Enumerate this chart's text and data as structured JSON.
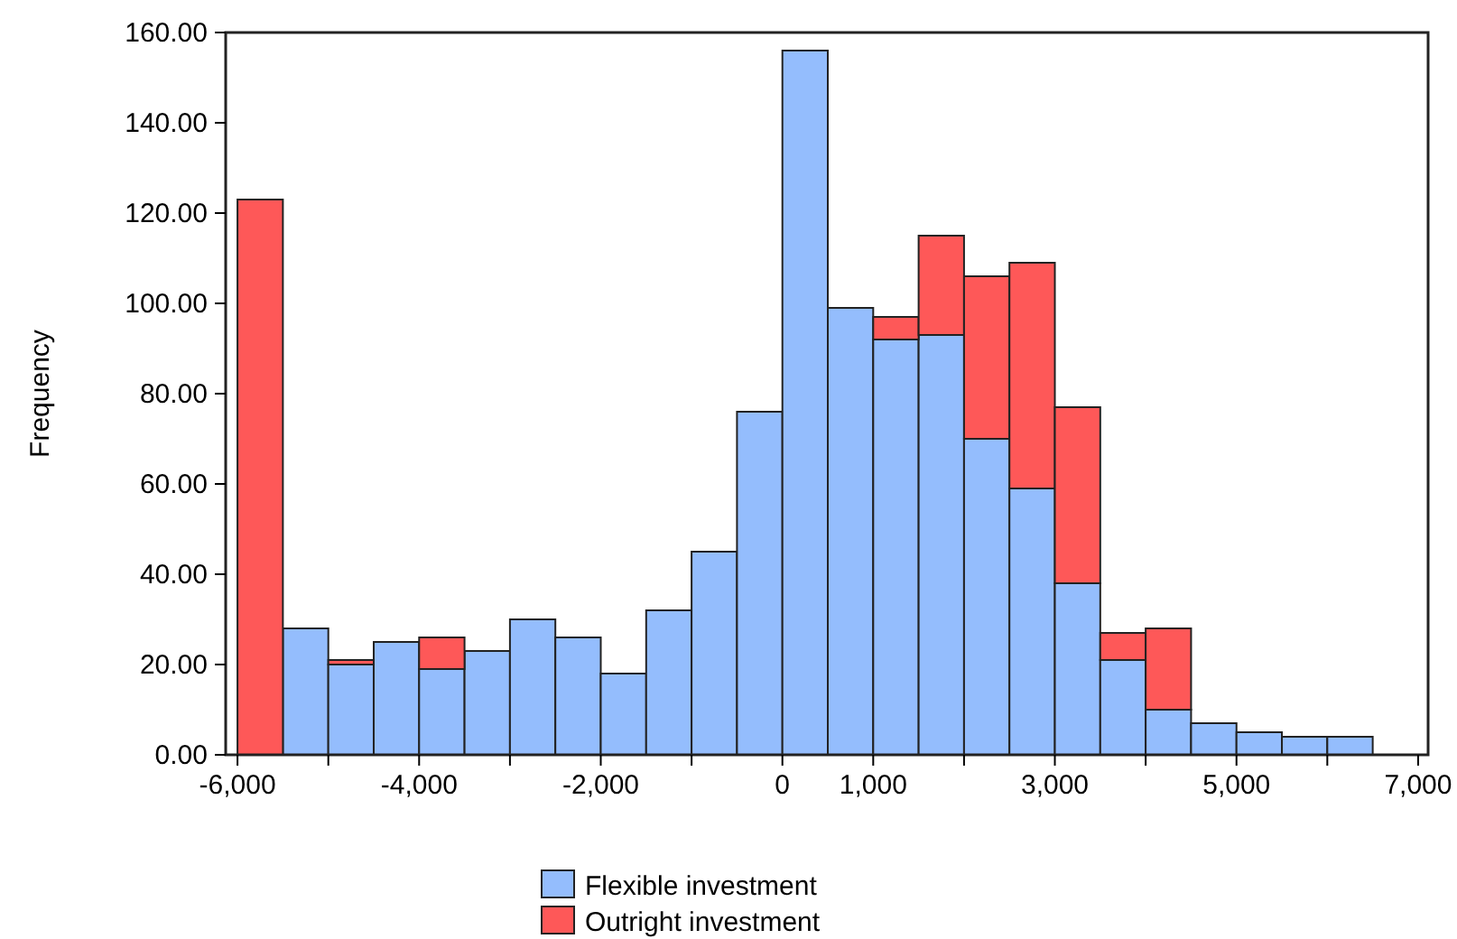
{
  "chart_data": {
    "type": "bar",
    "ylabel": "Frequency",
    "stacked": true,
    "legend": "bottom",
    "grid": false,
    "x": [
      -5750,
      -5250,
      -4750,
      -4250,
      -3750,
      -3250,
      -2750,
      -2250,
      -1750,
      -1250,
      -750,
      -250,
      250,
      750,
      1250,
      1750,
      2250,
      2750,
      3250,
      3750,
      4250,
      4750,
      5250,
      5750,
      6250
    ],
    "series": [
      {
        "name": "Flexible investment",
        "color": "#94bdfd",
        "values": [
          0,
          28,
          20,
          25,
          19,
          23,
          30,
          26,
          18,
          32,
          45,
          76,
          156,
          99,
          92,
          93,
          70,
          59,
          38,
          21,
          10,
          7,
          5,
          4,
          4
        ]
      },
      {
        "name": "Outright investment",
        "color": "#fe5858",
        "values": [
          123,
          0,
          1,
          0,
          7,
          0,
          0,
          0,
          0,
          0,
          0,
          0,
          0,
          0,
          5,
          22,
          36,
          50,
          39,
          6,
          18,
          0,
          0,
          0,
          0
        ]
      }
    ],
    "xlim": [
      -6130,
      7110
    ],
    "xticks": [
      {
        "value": -6000,
        "label": "-6,000"
      },
      {
        "value": -5000,
        "label": null
      },
      {
        "value": -4000,
        "label": "-4,000"
      },
      {
        "value": -3000,
        "label": null
      },
      {
        "value": -2000,
        "label": "-2,000"
      },
      {
        "value": -1000,
        "label": null
      },
      {
        "value": 0,
        "label": "0"
      },
      {
        "value": 1000,
        "label": "1,000"
      },
      {
        "value": 2000,
        "label": null
      },
      {
        "value": 3000,
        "label": "3,000"
      },
      {
        "value": 4000,
        "label": null
      },
      {
        "value": 5000,
        "label": "5,000"
      },
      {
        "value": 6000,
        "label": null
      },
      {
        "value": 7000,
        "label": "7,000"
      }
    ],
    "ylim": [
      0,
      160
    ],
    "yticks": [
      {
        "value": 0,
        "label": "0.00"
      },
      {
        "value": 20,
        "label": "20.00"
      },
      {
        "value": 40,
        "label": "40.00"
      },
      {
        "value": 60,
        "label": "60.00"
      },
      {
        "value": 80,
        "label": "80.00"
      },
      {
        "value": 100,
        "label": "100.00"
      },
      {
        "value": 120,
        "label": "120.00"
      },
      {
        "value": 140,
        "label": "140.00"
      },
      {
        "value": 160,
        "label": "160.00"
      }
    ]
  }
}
